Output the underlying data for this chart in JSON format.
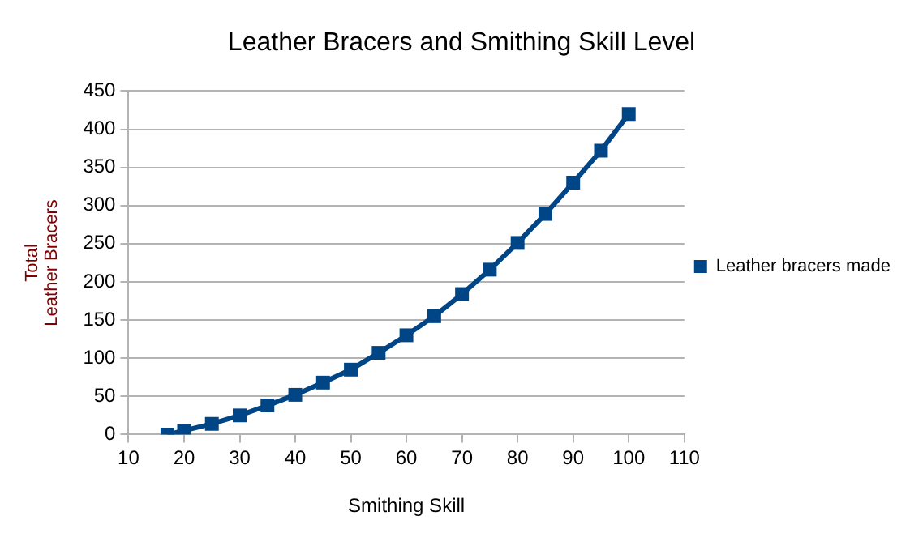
{
  "chart_data": {
    "type": "line",
    "title": "Leather Bracers and Smithing Skill Level",
    "xlabel": "Smithing Skill",
    "ylabel": "Total\nLeather Bracers",
    "x": [
      17,
      20,
      25,
      30,
      35,
      40,
      45,
      50,
      55,
      60,
      65,
      70,
      75,
      80,
      85,
      90,
      95,
      100
    ],
    "series": [
      {
        "name": "Leather bracers made",
        "color": "#004586",
        "values": [
          0,
          5,
          14,
          25,
          38,
          52,
          68,
          85,
          107,
          130,
          155,
          184,
          216,
          251,
          289,
          330,
          372,
          420
        ]
      }
    ],
    "xlim": [
      10,
      110
    ],
    "xticks": [
      10,
      20,
      30,
      40,
      50,
      60,
      70,
      80,
      90,
      100,
      110
    ],
    "ylim": [
      0,
      450
    ],
    "yticks": [
      0,
      50,
      100,
      150,
      200,
      250,
      300,
      350,
      400,
      450
    ],
    "grid": "y",
    "legend": "right",
    "marker": "square",
    "line_style": "solid"
  }
}
